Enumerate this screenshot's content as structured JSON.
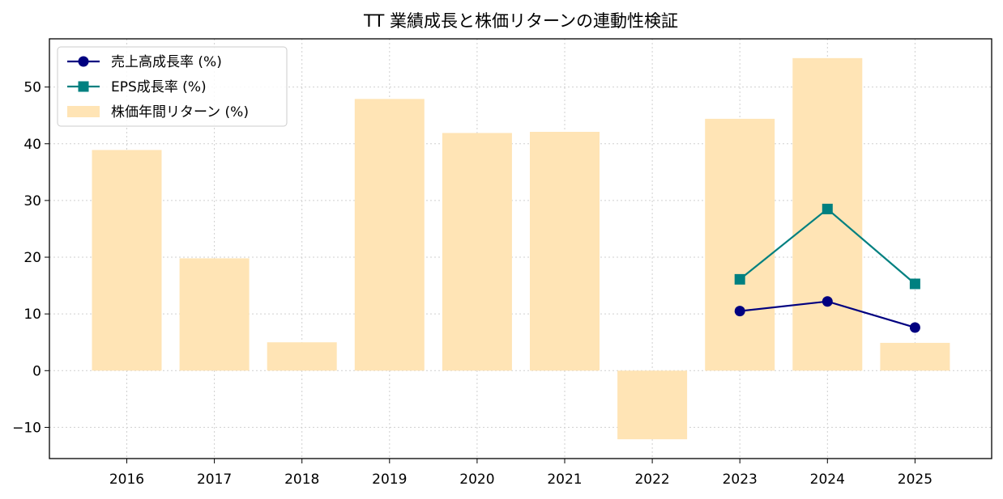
{
  "chart_data": {
    "type": "bar",
    "title": "TT 業績成長と株価リターンの連動性検証",
    "xlabel": "",
    "ylabel": "",
    "categories": [
      "2016",
      "2017",
      "2018",
      "2019",
      "2020",
      "2021",
      "2022",
      "2023",
      "2024",
      "2025"
    ],
    "ylim": [
      -15.5,
      58.5
    ],
    "yticks": [
      -10,
      0,
      10,
      20,
      30,
      40,
      50
    ],
    "ytick_labels": [
      "−10",
      "0",
      "10",
      "20",
      "30",
      "40",
      "50"
    ],
    "grid": true,
    "legend_position": "top-left",
    "series": [
      {
        "name": "売上高成長率 (%)",
        "kind": "line",
        "marker": "circle",
        "color": "#000080",
        "values": [
          null,
          null,
          null,
          null,
          null,
          null,
          null,
          10.5,
          12.2,
          7.6
        ]
      },
      {
        "name": "EPS成長率 (%)",
        "kind": "line",
        "marker": "square",
        "color": "#008080",
        "values": [
          null,
          null,
          null,
          null,
          null,
          null,
          null,
          16.1,
          28.5,
          15.3
        ]
      },
      {
        "name": "株価年間リターン (%)",
        "kind": "bar",
        "color": "#FFE4B5",
        "values": [
          38.9,
          19.8,
          5.0,
          47.9,
          41.9,
          42.1,
          -12.1,
          44.4,
          55.1,
          4.9
        ]
      }
    ]
  }
}
